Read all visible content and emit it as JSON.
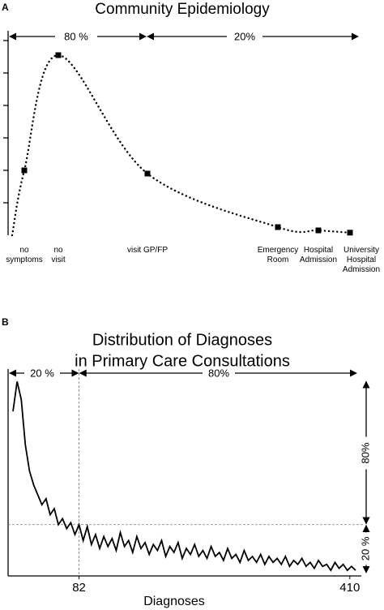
{
  "chart_data": [
    {
      "type": "scatter",
      "panel": "A",
      "title": "Community Epidemiology",
      "annotations": [
        "80 %",
        "20%"
      ],
      "categories": [
        "no\nsymptoms",
        "no\nvisit",
        "visit GP/FP",
        "Emergency\nRoom",
        "Hospital\nAdmission",
        "University\nHospital\nAdmission"
      ],
      "x": [
        20,
        62,
        172,
        333,
        383,
        422
      ],
      "values": [
        2,
        5.55,
        1.9,
        0.25,
        0.15,
        0.08
      ],
      "xlim": [
        0,
        430
      ],
      "ylim": [
        0,
        6
      ],
      "yticks": [
        1,
        2,
        3,
        4,
        5,
        6
      ],
      "color": "#000000"
    },
    {
      "type": "line",
      "panel": "B",
      "title": [
        "Distribution of Diagnoses",
        "in Primary Care Consultations"
      ],
      "annotations": [
        "20 %",
        "80%"
      ],
      "side_annotations": [
        "80%",
        "20 %"
      ],
      "xlabel": "Diagnoses",
      "x": [
        2,
        7,
        12,
        17,
        22,
        27,
        32,
        37,
        42,
        47,
        52,
        57,
        62,
        67,
        72,
        77,
        82,
        87,
        92,
        97,
        102,
        107,
        112,
        117,
        122,
        127,
        132,
        137,
        142,
        147,
        152,
        157,
        162,
        167,
        172,
        177,
        182,
        187,
        192,
        197,
        202,
        207,
        212,
        217,
        222,
        227,
        232,
        237,
        242,
        247,
        252,
        257,
        262,
        267,
        272,
        277,
        282,
        287,
        292,
        297,
        302,
        307,
        312,
        317,
        322,
        327,
        332,
        337,
        342,
        347,
        352,
        357,
        362,
        367,
        372,
        377,
        382,
        387,
        392,
        397,
        402,
        407,
        412,
        417
      ],
      "values": [
        82,
        97,
        88,
        65,
        52,
        45,
        40,
        35,
        38,
        30,
        33,
        25,
        28,
        23,
        26,
        20,
        25,
        17,
        24,
        15,
        20,
        13,
        19,
        14,
        18,
        12,
        21,
        14,
        17,
        11,
        19,
        13,
        16,
        10,
        15,
        12,
        17,
        9,
        14,
        11,
        16,
        8,
        13,
        10,
        15,
        9,
        12,
        8,
        14,
        9,
        11,
        7,
        13,
        8,
        10,
        6,
        12,
        7,
        9,
        6,
        10,
        5,
        9,
        6,
        8,
        5,
        9,
        4,
        7,
        5,
        8,
        4,
        6,
        3,
        7,
        4,
        5,
        2,
        6,
        3,
        5,
        2,
        4,
        2
      ],
      "xlim": [
        0,
        420
      ],
      "ylim": [
        0,
        100
      ],
      "xticks": [
        82,
        410
      ],
      "vline": 82,
      "hline": 25,
      "color": "#000000"
    }
  ]
}
